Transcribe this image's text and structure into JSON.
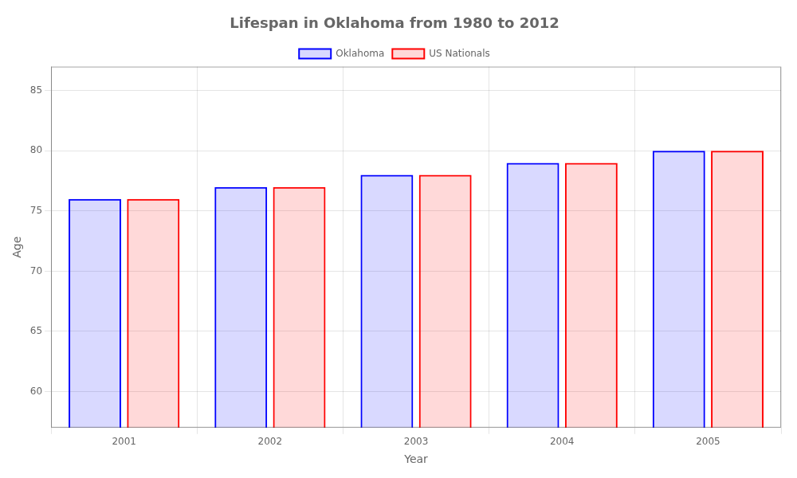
{
  "chart_data": {
    "type": "bar",
    "title": "Lifespan in Oklahoma from 1980 to 2012",
    "x_label": "Year",
    "y_label": "Age",
    "categories": [
      "2001",
      "2002",
      "2003",
      "2004",
      "2005"
    ],
    "series": [
      {
        "name": "Oklahoma",
        "color": "#0000ff",
        "values": [
          76,
          77,
          78,
          79,
          80
        ]
      },
      {
        "name": "US Nationals",
        "color": "#ff0000",
        "values": [
          76,
          77,
          78,
          79,
          80
        ]
      }
    ],
    "ylim": [
      57,
      87
    ],
    "yticks": [
      60,
      65,
      70,
      75,
      80,
      85
    ],
    "grid": true,
    "legend": "top"
  }
}
